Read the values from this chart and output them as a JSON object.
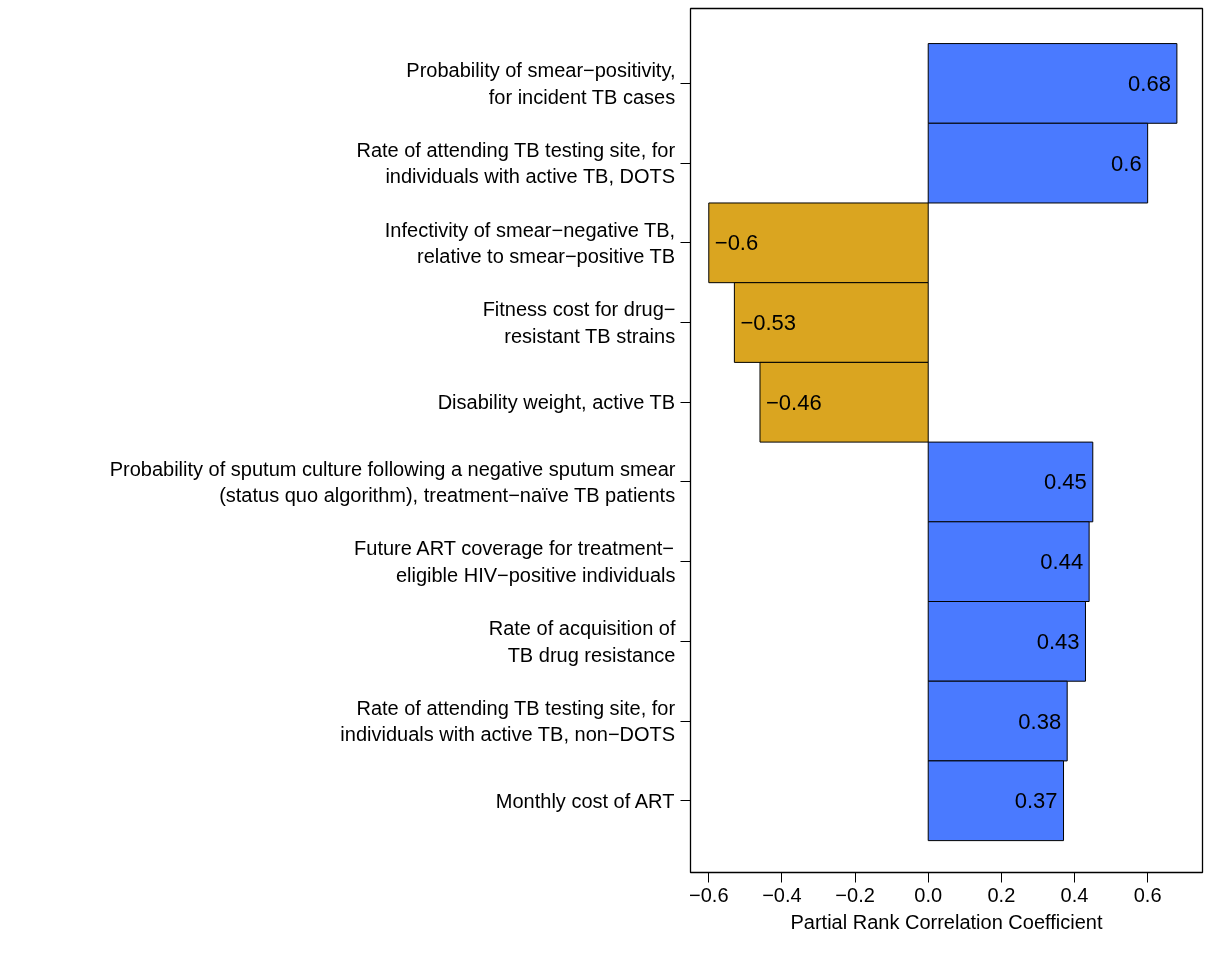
{
  "chart_data": {
    "type": "bar",
    "orientation": "horizontal",
    "xlabel": "Partial Rank Correlation Coefficient",
    "categories": [
      "Probability of smear−positivity,\nfor incident TB cases",
      "Rate of attending TB testing site, for\nindividuals with active TB, DOTS",
      "Infectivity of smear−negative TB,\nrelative to smear−positive TB",
      "Fitness cost for drug−\nresistant TB strains",
      "Disability weight, active TB",
      "Probability of sputum culture following a negative sputum smear\n(status quo algorithm), treatment−naïve TB patients",
      "Future ART coverage for treatment−\neligible HIV−positive individuals",
      "Rate of acquisition of\nTB drug resistance",
      "Rate of attending TB testing site, for\nindividuals with active TB, non−DOTS",
      "Monthly cost of ART"
    ],
    "values": [
      0.68,
      0.6,
      -0.6,
      -0.53,
      -0.46,
      0.45,
      0.44,
      0.43,
      0.38,
      0.37
    ],
    "value_labels": [
      "0.68",
      "0.6",
      "−0.6",
      "−0.53",
      "−0.46",
      "0.45",
      "0.44",
      "0.43",
      "0.38",
      "0.37"
    ],
    "colors": [
      "#4a7aff",
      "#4a7aff",
      "#daa520",
      "#daa520",
      "#daa520",
      "#4a7aff",
      "#4a7aff",
      "#4a7aff",
      "#4a7aff",
      "#4a7aff"
    ],
    "xlim": [
      -0.65,
      0.75
    ],
    "xticks": [
      {
        "value": -0.6,
        "label": "−0.6"
      },
      {
        "value": -0.4,
        "label": "−0.4"
      },
      {
        "value": -0.2,
        "label": "−0.2"
      },
      {
        "value": 0,
        "label": "0.0"
      },
      {
        "value": 0.2,
        "label": "0.2"
      },
      {
        "value": 0.4,
        "label": "0.4"
      },
      {
        "value": 0.6,
        "label": "0.6"
      }
    ],
    "grid": false
  }
}
